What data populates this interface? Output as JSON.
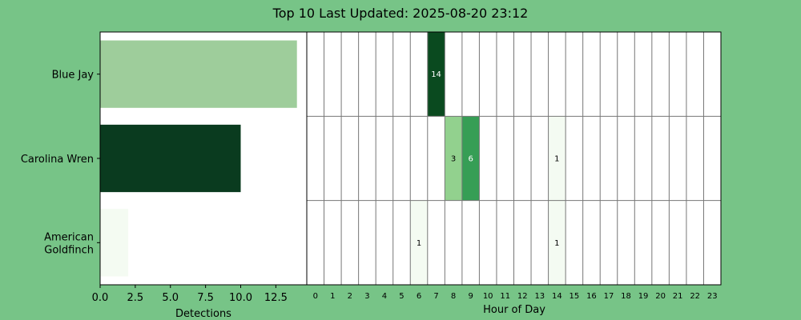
{
  "chart_data": [
    {
      "type": "bar",
      "orientation": "horizontal",
      "title": "Top 10 Last Updated: 2025-08-20 23:12",
      "categories": [
        "Blue Jay",
        "Carolina Wren",
        "American\nGoldfinch"
      ],
      "values": [
        14,
        10,
        2
      ],
      "xlabel": "Detections",
      "xlim": [
        0,
        14.7
      ],
      "xticks": [
        "0.0",
        "2.5",
        "5.0",
        "7.5",
        "10.0",
        "12.5"
      ],
      "colors": [
        "#9ecd9b",
        "#0a3b1f",
        "#f4fbf2"
      ]
    },
    {
      "type": "heatmap",
      "rows": [
        "Blue Jay",
        "Carolina Wren",
        "American Goldfinch"
      ],
      "hours": [
        "0",
        "1",
        "2",
        "3",
        "4",
        "5",
        "6",
        "7",
        "8",
        "9",
        "10",
        "11",
        "12",
        "13",
        "14",
        "15",
        "16",
        "17",
        "18",
        "19",
        "20",
        "21",
        "22",
        "23"
      ],
      "xlabel": "Hour of Day",
      "current_hour": "23",
      "current_hour_color": "#ffff66",
      "cells": [
        {
          "row": 0,
          "hour": 7,
          "value": 14,
          "color": "#0a4a1f"
        },
        {
          "row": 1,
          "hour": 8,
          "value": 3,
          "color": "#92d18e"
        },
        {
          "row": 1,
          "hour": 9,
          "value": 6,
          "color": "#369e55"
        },
        {
          "row": 1,
          "hour": 14,
          "value": 1,
          "color": "#f4fbf2"
        },
        {
          "row": 2,
          "hour": 6,
          "value": 1,
          "color": "#f4fbf2"
        },
        {
          "row": 2,
          "hour": 14,
          "value": 1,
          "color": "#f4fbf2"
        }
      ]
    }
  ]
}
